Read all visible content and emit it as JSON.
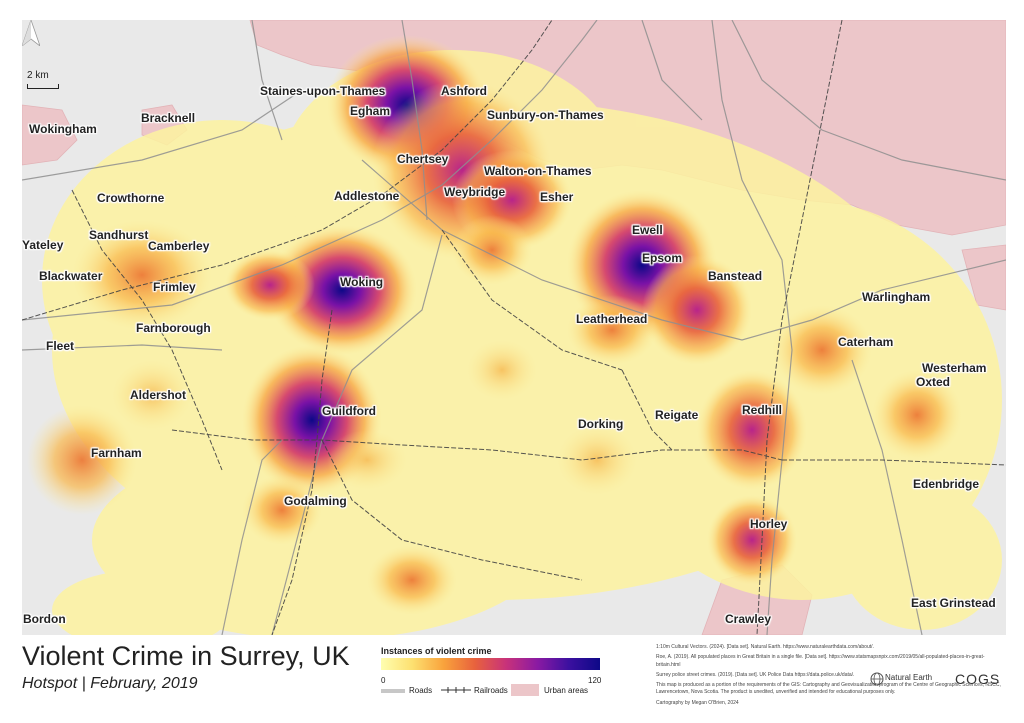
{
  "title": "Violent Crime in Surrey, UK",
  "subtitle": "Hotspot | February, 2019",
  "scale_label": "2 km",
  "legend": {
    "title": "Instances of violent crime",
    "min": "0",
    "max": "120",
    "roads": "Roads",
    "railroads": "Railroads",
    "urban": "Urban areas"
  },
  "colors": {
    "map_background": "#e9e9e9",
    "urban": "#ecc6c9",
    "low": "#fefeb0",
    "high": "#0d0887"
  },
  "towns": {
    "staines": "Staines-upon-Thames",
    "ashford": "Ashford",
    "egham": "Egham",
    "sunbury": "Sunbury-on-Thames",
    "wokingham": "Wokingham",
    "bracknell": "Bracknell",
    "chertsey": "Chertsey",
    "walton": "Walton-on-Thames",
    "crowthorne": "Crowthorne",
    "addlestone": "Addlestone",
    "weybridge": "Weybridge",
    "esher": "Esher",
    "sandhurst": "Sandhurst",
    "ewell": "Ewell",
    "yateley": "Yateley",
    "camberley": "Camberley",
    "epsom": "Epsom",
    "banstead": "Banstead",
    "blackwater": "Blackwater",
    "frimley": "Frimley",
    "woking": "Woking",
    "warlingham": "Warlingham",
    "farnborough": "Farnborough",
    "leatherhead": "Leatherhead",
    "fleet": "Fleet",
    "caterham": "Caterham",
    "westerham": "Westerham",
    "oxted": "Oxted",
    "aldershot": "Aldershot",
    "guildford": "Guildford",
    "redhill": "Redhill",
    "dorking": "Dorking",
    "reigate": "Reigate",
    "farnham": "Farnham",
    "edenbridge": "Edenbridge",
    "godalming": "Godalming",
    "horley": "Horley",
    "bordon": "Bordon",
    "east_grinstead": "East Grinstead",
    "crawley": "Crawley"
  },
  "credits": {
    "line1": "1:10m Cultural Vectors. (2024). [Data set]. Natural Earth. https://www.naturalearthdata.com/about/.",
    "line2": "Roe, A. (2019). All populated places in Great Britain in a single file. [Data set]. https://www.statsmapsnpix.com/2019/05/all-populated-places-in-great-britain.html",
    "line3": "Surrey police street crimes. (2019). [Data set]. UK Police Data https://data.police.uk/data/.",
    "line4": "This map is produced as a portion of the requirements of the GIS: Cartography and Geovisualization program of the Centre of Geographic Sciences, NSCC, Lawrencetown, Nova Scotia. The product is unedited, unverified and intended for educational purposes only.",
    "line5": "Cartography by Megan O'Brien, 2024"
  },
  "logos": {
    "natural_earth": "Natural Earth",
    "cogs": "COGS"
  }
}
